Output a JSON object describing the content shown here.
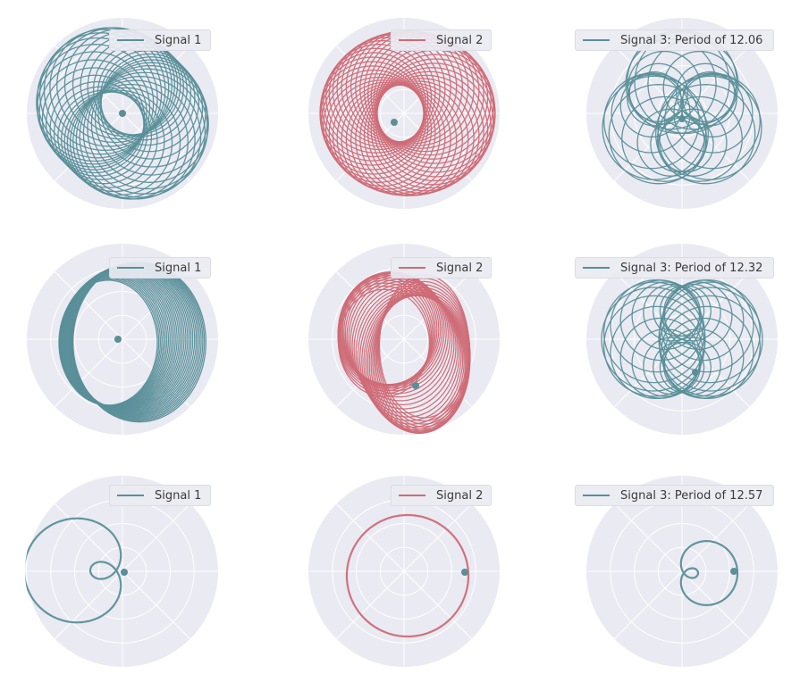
{
  "colors": {
    "teal": "#5a8f99",
    "red": "#cf6b76",
    "background": "#eaeaf2",
    "gridline": "#ffffff"
  },
  "chart_data": [
    {
      "type": "polar-line",
      "row": 1,
      "series": [
        {
          "name": "Signal 1",
          "color": "#5a8f99",
          "pattern": "dense-offset-circles"
        }
      ],
      "grid": true,
      "legend": "top-right"
    },
    {
      "type": "polar-line",
      "row": 1,
      "series": [
        {
          "name": "Signal 2",
          "color": "#cf6b76",
          "pattern": "dense-offset-circles"
        }
      ],
      "grid": true,
      "legend": "top-right"
    },
    {
      "type": "polar-line",
      "row": 1,
      "series": [
        {
          "name": "Signal 3: Period of 12.06",
          "color": "#5a8f99",
          "period": 12.06
        }
      ],
      "grid": true,
      "legend": "top-right"
    },
    {
      "type": "polar-line",
      "row": 2,
      "series": [
        {
          "name": "Signal 1",
          "color": "#5a8f99",
          "pattern": "dense-offset-circles"
        }
      ],
      "grid": true,
      "legend": "top-right"
    },
    {
      "type": "polar-line",
      "row": 2,
      "series": [
        {
          "name": "Signal 2",
          "color": "#cf6b76",
          "pattern": "dense-offset-circles"
        }
      ],
      "grid": true,
      "legend": "top-right"
    },
    {
      "type": "polar-line",
      "row": 2,
      "series": [
        {
          "name": "Signal 3: Period of 12.32",
          "color": "#5a8f99",
          "period": 12.32
        }
      ],
      "grid": true,
      "legend": "top-right"
    },
    {
      "type": "polar-line",
      "row": 3,
      "series": [
        {
          "name": "Signal 1",
          "color": "#5a8f99",
          "pattern": "limacon-inner-loop"
        }
      ],
      "grid": true,
      "legend": "top-right"
    },
    {
      "type": "polar-line",
      "row": 3,
      "series": [
        {
          "name": "Signal 2",
          "color": "#cf6b76",
          "pattern": "single-closed-curve"
        }
      ],
      "grid": true,
      "legend": "top-right"
    },
    {
      "type": "polar-line",
      "row": 3,
      "series": [
        {
          "name": "Signal 3: Period of 12.57",
          "color": "#5a8f99",
          "period": 12.57
        }
      ],
      "grid": true,
      "legend": "top-right"
    }
  ]
}
